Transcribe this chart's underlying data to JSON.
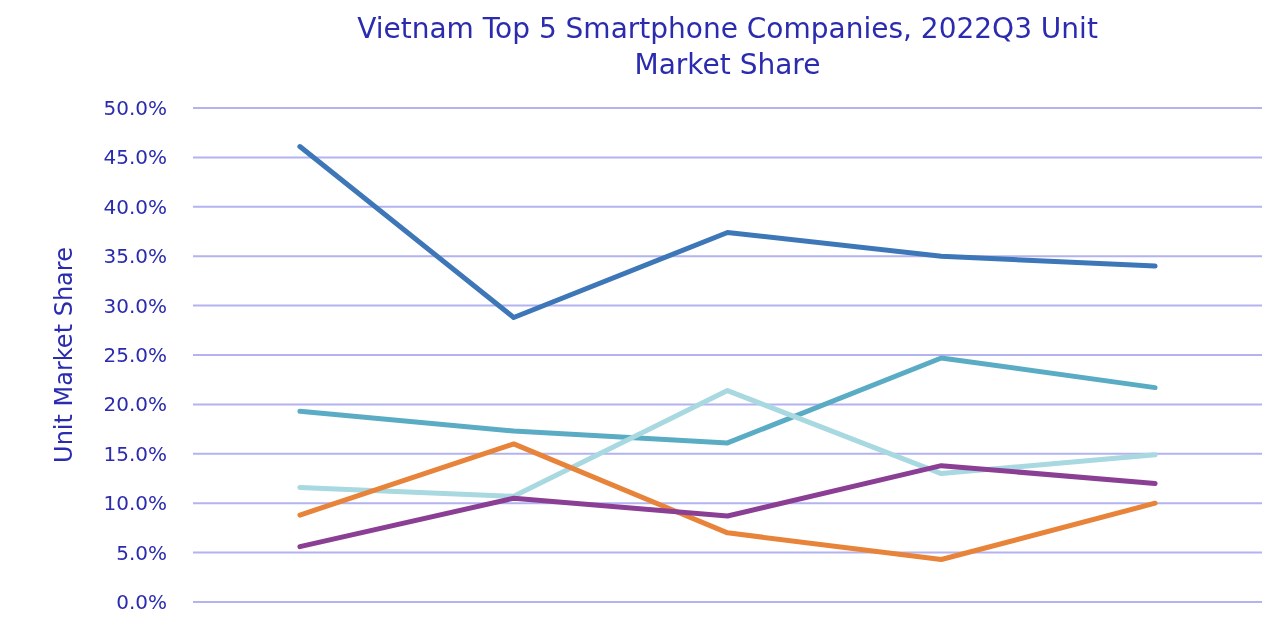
{
  "chart_data": {
    "type": "line",
    "title": "Vietnam Top 5 Smartphone Companies, 2022Q3 Unit Market Share",
    "ylabel": "Unit Market Share",
    "categories": [
      null,
      null,
      null,
      null,
      null
    ],
    "series": [
      {
        "color": "#3d77b8",
        "values": [
          46.1,
          28.8,
          37.4,
          35.0,
          34.0
        ]
      },
      {
        "color": "#5aacc4",
        "values": [
          19.3,
          17.3,
          16.1,
          24.7,
          21.7
        ]
      },
      {
        "color": "#a8d8e0",
        "values": [
          11.6,
          10.7,
          21.4,
          13.0,
          14.9
        ]
      },
      {
        "color": "#e8833a",
        "values": [
          8.8,
          16.0,
          7.0,
          4.3,
          10.0
        ]
      },
      {
        "color": "#8b3f94",
        "values": [
          5.6,
          10.5,
          8.7,
          13.8,
          12.0
        ]
      }
    ],
    "ylim": [
      0,
      50
    ],
    "yticks": [
      {
        "value": 0,
        "label": "0.0%"
      },
      {
        "value": 5,
        "label": "5.0%"
      },
      {
        "value": 10,
        "label": "10.0%"
      },
      {
        "value": 15,
        "label": "15.0%"
      },
      {
        "value": 20,
        "label": "20.0%"
      },
      {
        "value": 25,
        "label": "25.0%"
      },
      {
        "value": 30,
        "label": "30.0%"
      },
      {
        "value": 35,
        "label": "35.0%"
      },
      {
        "value": 40,
        "label": "40.0%"
      },
      {
        "value": 45,
        "label": "45.0%"
      },
      {
        "value": 50,
        "label": "50.0%"
      }
    ],
    "grid": "y",
    "marker": "none",
    "line_style": "solid"
  }
}
